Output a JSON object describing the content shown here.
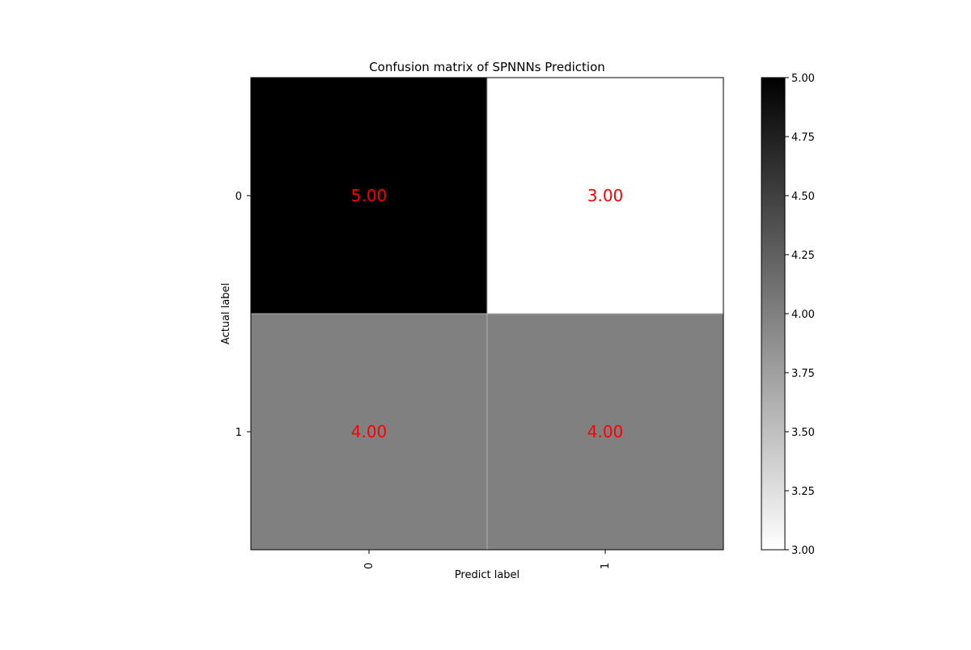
{
  "chart_data": {
    "type": "heatmap",
    "title": "Confusion matrix of SPNNNs Prediction",
    "xlabel": "Predict label",
    "ylabel": "Actual label",
    "x_categories": [
      "0",
      "1"
    ],
    "y_categories": [
      "0",
      "1"
    ],
    "values": [
      [
        5,
        3
      ],
      [
        4,
        4
      ]
    ],
    "cell_labels": [
      [
        "5.00",
        "3.00"
      ],
      [
        "4.00",
        "4.00"
      ]
    ],
    "colormap": "gray_r",
    "colorbar": {
      "range": [
        3.0,
        5.0
      ],
      "ticks": [
        "3.00",
        "3.25",
        "3.50",
        "3.75",
        "4.00",
        "4.25",
        "4.50",
        "4.75",
        "5.00"
      ]
    },
    "annotation_color": "#ff0000",
    "grid": true,
    "legend": "colorbar-right"
  }
}
